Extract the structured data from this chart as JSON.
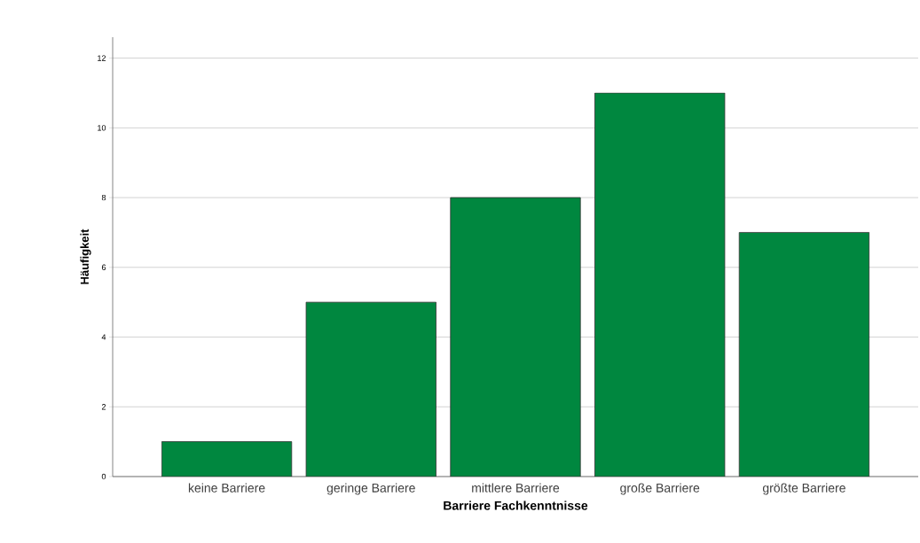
{
  "chart_data": {
    "type": "bar",
    "xlabel": "Barriere Fachkenntnisse",
    "ylabel": "Häufigkeit",
    "categories": [
      "keine Barriere",
      "geringe Barriere",
      "mittlere Barriere",
      "große Barriere",
      "größte Barriere"
    ],
    "values": [
      1,
      5,
      8,
      11,
      7
    ],
    "color": "#00873f",
    "ylim": [
      0,
      12.6
    ],
    "yticks": [
      0,
      2,
      4,
      6,
      8,
      10,
      12
    ],
    "grid": "y"
  }
}
